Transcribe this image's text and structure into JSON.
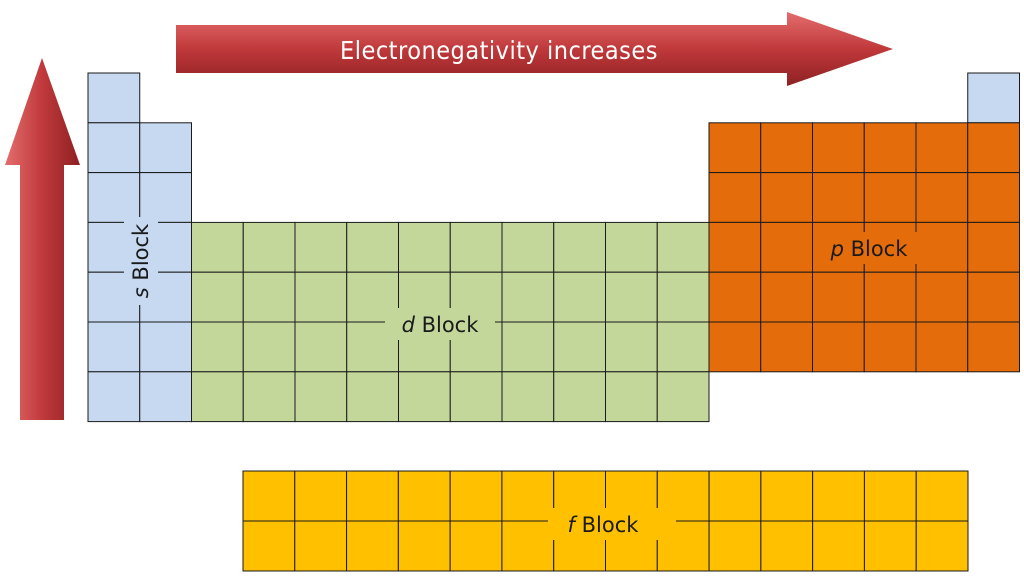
{
  "arrow_horizontal": {
    "label": "Electronegativity increases",
    "color": "#c0393b"
  },
  "arrow_vertical": {
    "color": "#c0393b"
  },
  "blocks": {
    "s": {
      "letter": "s",
      "word": " Block",
      "fill": "#c6d9f0"
    },
    "d": {
      "letter": "d",
      "word": " Block",
      "fill": "#c4d79b"
    },
    "p": {
      "letter": "p",
      "word": " Block",
      "fill": "#e46c0a"
    },
    "f": {
      "letter": "f",
      "word": " Block",
      "fill": "#ffc000"
    }
  },
  "grid_line_color": "#1a1a1a"
}
